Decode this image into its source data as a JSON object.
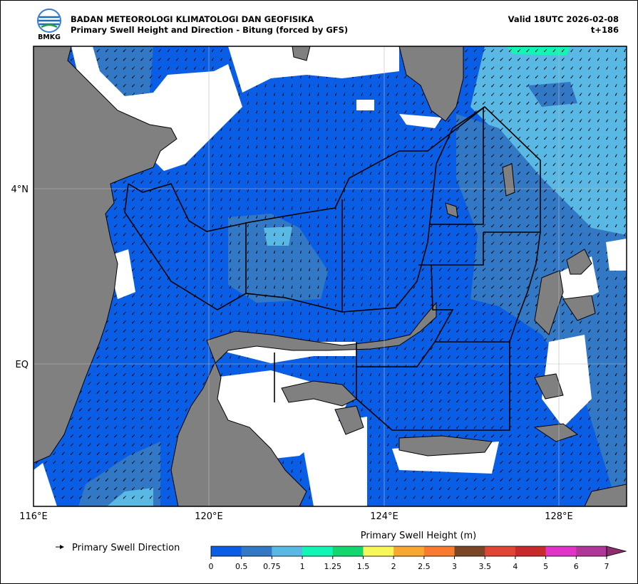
{
  "header": {
    "logo_text": "BMKG",
    "agency": "BADAN METEOROLOGI KLIMATOLOGI DAN GEOFISIKA",
    "title": "Primary Swell Height and Direction - Bitung (forced by GFS)",
    "valid": "Valid 18UTC 2026-02-08",
    "lead": "t+186"
  },
  "map": {
    "lon_labels": [
      "116°E",
      "120°E",
      "124°E",
      "128°E"
    ],
    "lat_labels": [
      "4°N",
      "EQ"
    ]
  },
  "legend": {
    "direction_label": "Primary Swell Direction"
  },
  "colorbar": {
    "title": "Primary Swell Height (m)",
    "ticks": [
      0,
      0.5,
      0.75,
      1,
      1.25,
      1.5,
      2,
      2.5,
      3,
      3.5,
      4,
      5,
      6,
      7
    ],
    "colors": [
      "#0a5ee6",
      "#3278c4",
      "#5ab9e4",
      "#12f5b4",
      "#14d66e",
      "#f7f75a",
      "#f8a832",
      "#f97b30",
      "#7a4626",
      "#e04634",
      "#c62a2a",
      "#e034c8",
      "#b0369a"
    ],
    "extend_color": "#8c2e6e"
  }
}
